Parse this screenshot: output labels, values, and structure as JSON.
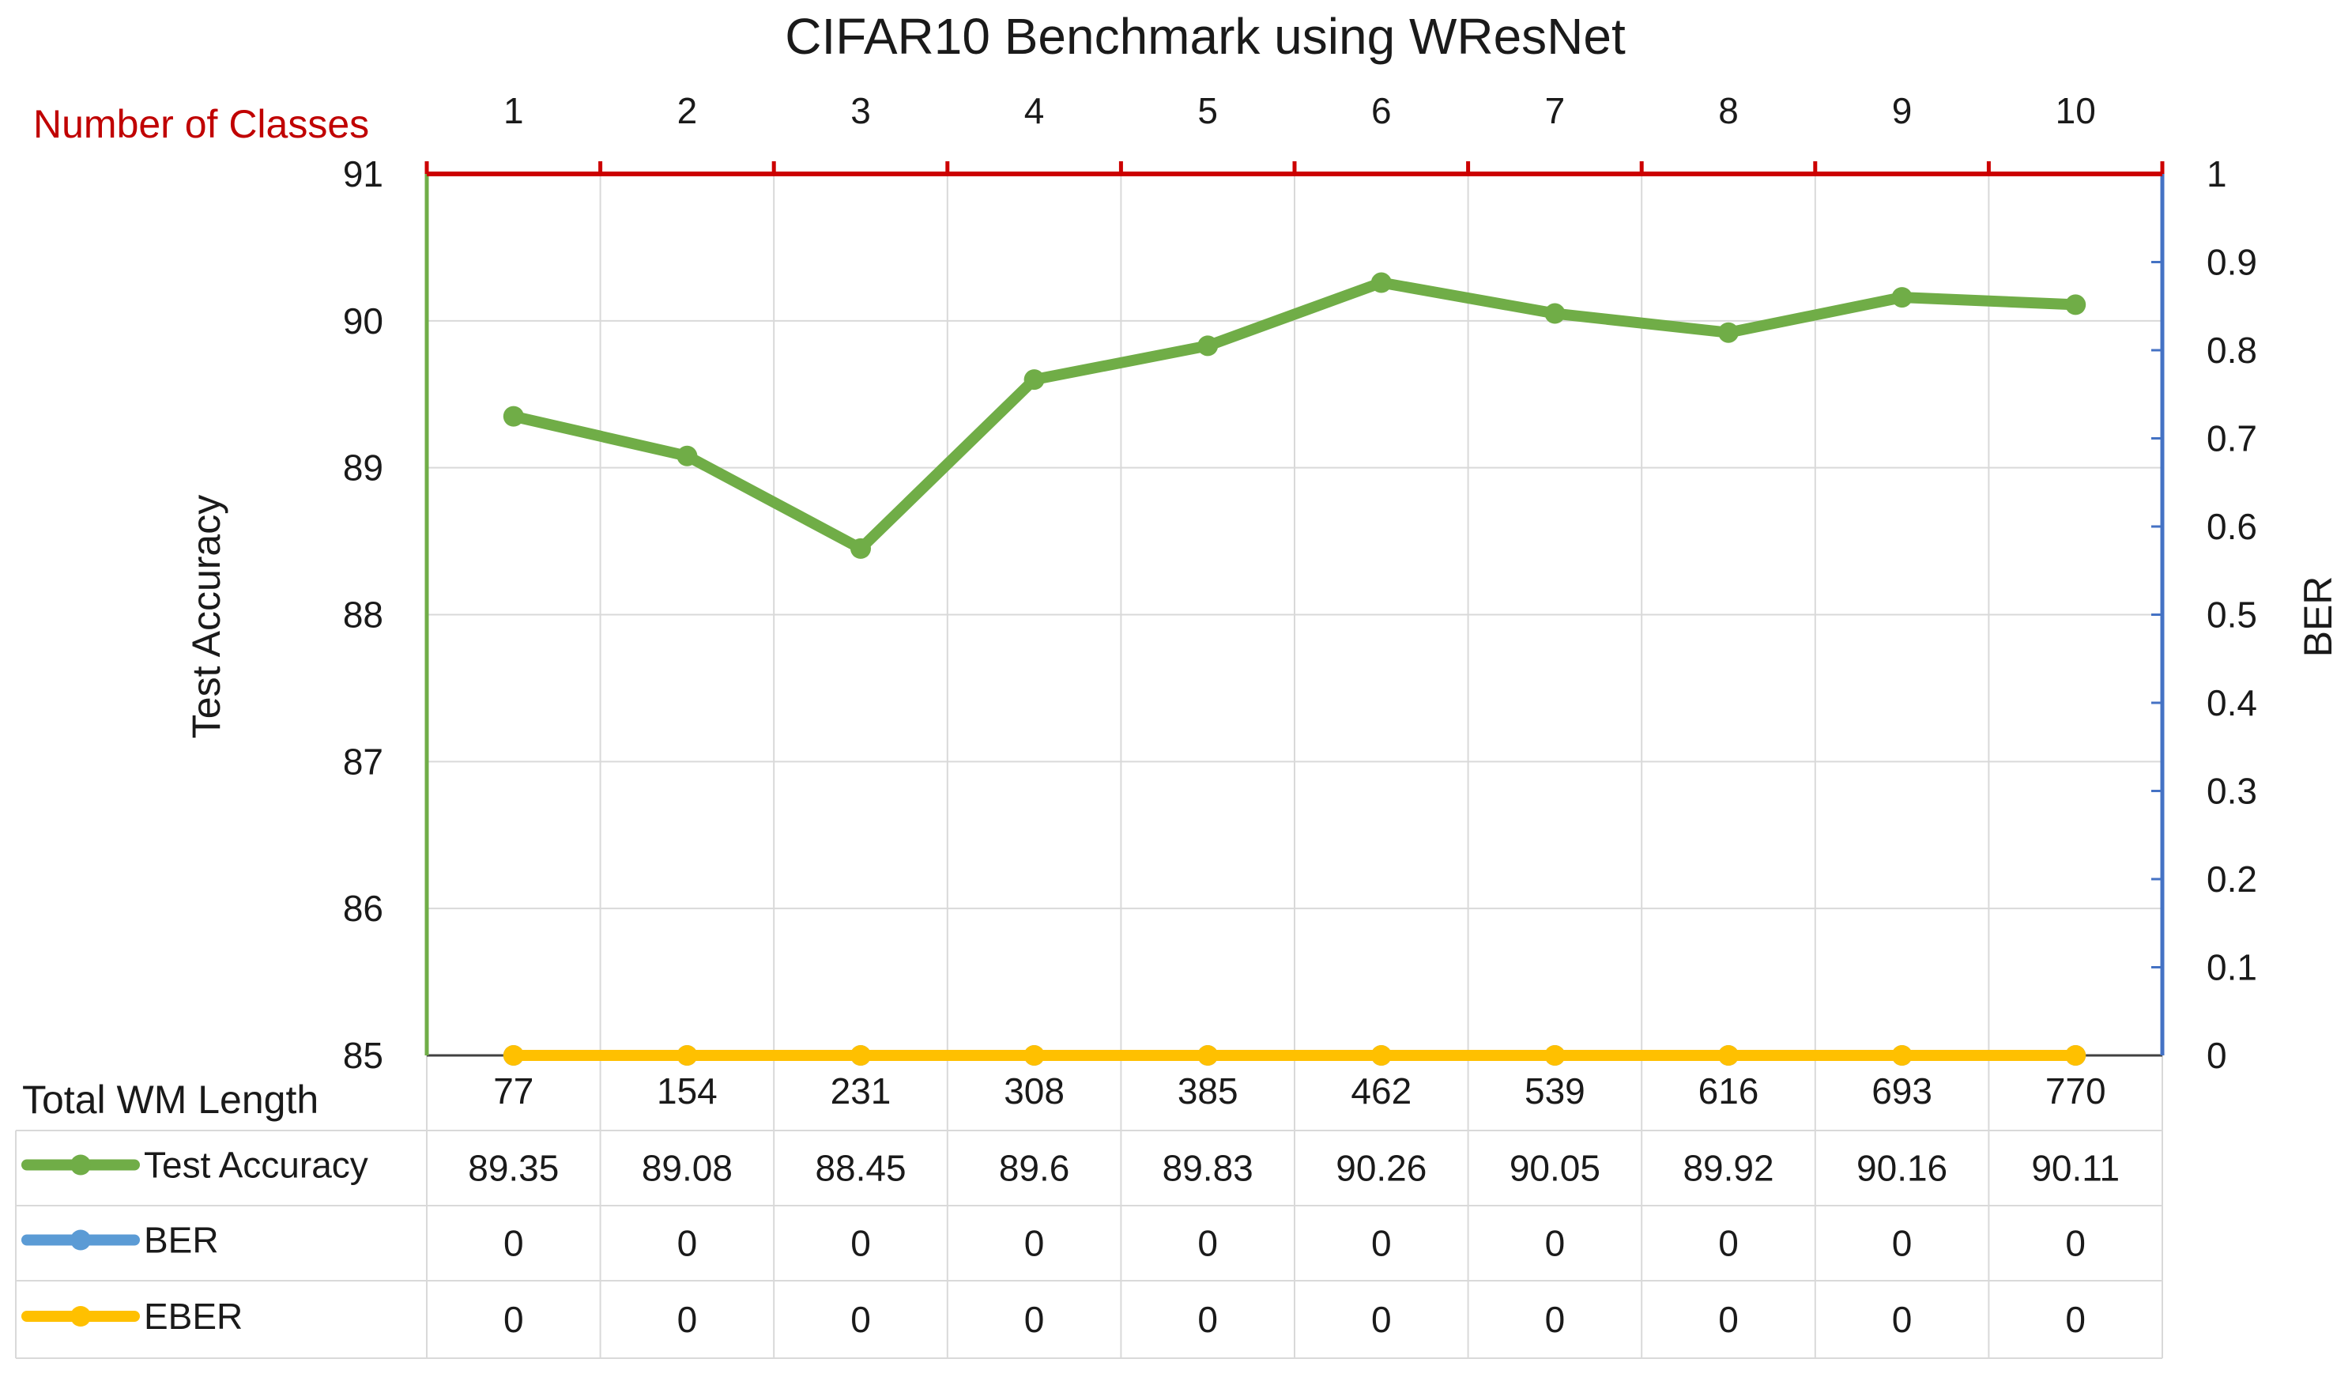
{
  "chart_data": {
    "type": "line",
    "title": "CIFAR10 Benchmark using WResNet",
    "top_axis_label": "Number of Classes",
    "top_categories": [
      "1",
      "2",
      "3",
      "4",
      "5",
      "6",
      "7",
      "8",
      "9",
      "10"
    ],
    "bottom_axis_label": "Total WM Length",
    "categories": [
      "77",
      "154",
      "231",
      "308",
      "385",
      "462",
      "539",
      "616",
      "693",
      "770"
    ],
    "ylabel": "Test Accuracy",
    "ylim": [
      85,
      91
    ],
    "yticks": [
      "85",
      "86",
      "87",
      "88",
      "89",
      "90",
      "91"
    ],
    "y2label": "BER",
    "y2lim": [
      0,
      1
    ],
    "y2ticks": [
      "0",
      "0.1",
      "0.2",
      "0.3",
      "0.4",
      "0.5",
      "0.6",
      "0.7",
      "0.8",
      "0.9",
      "1"
    ],
    "grid": true,
    "series": [
      {
        "name": "Test Accuracy",
        "axis": "left",
        "color": "#70ad47",
        "values": [
          89.35,
          89.08,
          88.45,
          89.6,
          89.83,
          90.26,
          90.05,
          89.92,
          90.16,
          90.11
        ],
        "labels": [
          "89.35",
          "89.08",
          "88.45",
          "89.6",
          "89.83",
          "90.26",
          "90.05",
          "89.92",
          "90.16",
          "90.11"
        ]
      },
      {
        "name": "BER",
        "axis": "right",
        "color": "#5b9bd5",
        "values": [
          0,
          0,
          0,
          0,
          0,
          0,
          0,
          0,
          0,
          0
        ],
        "labels": [
          "0",
          "0",
          "0",
          "0",
          "0",
          "0",
          "0",
          "0",
          "0",
          "0"
        ]
      },
      {
        "name": "EBER",
        "axis": "right",
        "color": "#ffc000",
        "values": [
          0,
          0,
          0,
          0,
          0,
          0,
          0,
          0,
          0,
          0
        ],
        "labels": [
          "0",
          "0",
          "0",
          "0",
          "0",
          "0",
          "0",
          "0",
          "0",
          "0"
        ]
      }
    ],
    "colors": {
      "top_axis": "#cc0000",
      "right_axis": "#4472c4",
      "left_axis": "#70ad47"
    }
  }
}
